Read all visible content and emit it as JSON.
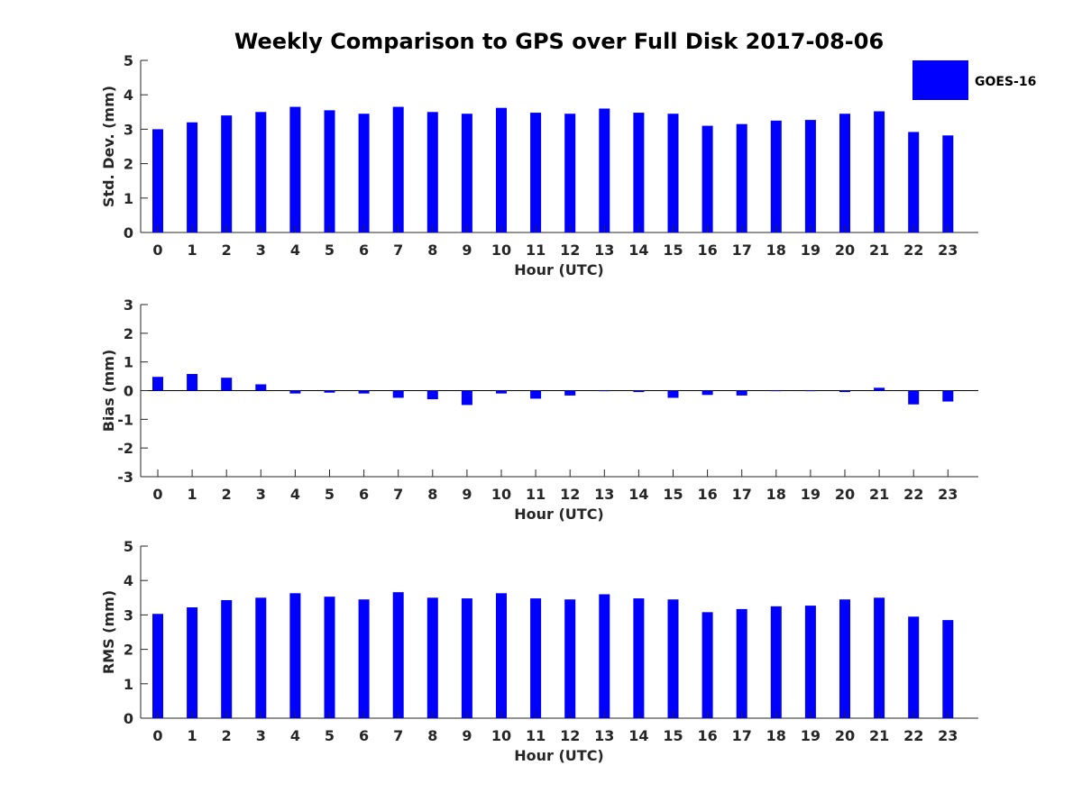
{
  "title": "Weekly Comparison to GPS over Full Disk 2017-08-06",
  "legend": {
    "label": "GOES-16",
    "color": "#0000ff"
  },
  "chart_data": [
    {
      "type": "bar",
      "title": "Weekly Comparison to GPS over Full Disk 2017-08-06",
      "xlabel": "Hour (UTC)",
      "ylabel": "Std. Dev. (mm)",
      "ylim": [
        0,
        5
      ],
      "yticks": [
        0,
        1,
        2,
        3,
        4,
        5
      ],
      "categories": [
        "0",
        "1",
        "2",
        "3",
        "4",
        "5",
        "6",
        "7",
        "8",
        "9",
        "10",
        "11",
        "12",
        "13",
        "14",
        "15",
        "16",
        "17",
        "18",
        "19",
        "20",
        "21",
        "22",
        "23"
      ],
      "series": [
        {
          "name": "GOES-16",
          "color": "#0000ff",
          "values": [
            3.0,
            3.2,
            3.4,
            3.5,
            3.65,
            3.55,
            3.45,
            3.65,
            3.5,
            3.45,
            3.62,
            3.48,
            3.45,
            3.6,
            3.48,
            3.45,
            3.1,
            3.15,
            3.25,
            3.27,
            3.45,
            3.52,
            2.92,
            2.82
          ]
        }
      ]
    },
    {
      "type": "bar",
      "xlabel": "Hour (UTC)",
      "ylabel": "Bias (mm)",
      "ylim": [
        -3,
        3
      ],
      "yticks": [
        -3,
        -2,
        -1,
        0,
        1,
        2,
        3
      ],
      "categories": [
        "0",
        "1",
        "2",
        "3",
        "4",
        "5",
        "6",
        "7",
        "8",
        "9",
        "10",
        "11",
        "12",
        "13",
        "14",
        "15",
        "16",
        "17",
        "18",
        "19",
        "20",
        "21",
        "22",
        "23"
      ],
      "series": [
        {
          "name": "GOES-16",
          "color": "#0000ff",
          "values": [
            0.48,
            0.58,
            0.45,
            0.22,
            -0.1,
            -0.07,
            -0.1,
            -0.25,
            -0.3,
            -0.5,
            -0.1,
            -0.28,
            -0.17,
            -0.02,
            -0.05,
            -0.25,
            -0.15,
            -0.17,
            -0.02,
            -0.02,
            -0.05,
            0.1,
            -0.48,
            -0.38
          ]
        }
      ]
    },
    {
      "type": "bar",
      "xlabel": "Hour (UTC)",
      "ylabel": "RMS (mm)",
      "ylim": [
        0,
        5
      ],
      "yticks": [
        0,
        1,
        2,
        3,
        4,
        5
      ],
      "categories": [
        "0",
        "1",
        "2",
        "3",
        "4",
        "5",
        "6",
        "7",
        "8",
        "9",
        "10",
        "11",
        "12",
        "13",
        "14",
        "15",
        "16",
        "17",
        "18",
        "19",
        "20",
        "21",
        "22",
        "23"
      ],
      "series": [
        {
          "name": "GOES-16",
          "color": "#0000ff",
          "values": [
            3.03,
            3.22,
            3.43,
            3.5,
            3.63,
            3.53,
            3.45,
            3.66,
            3.5,
            3.48,
            3.63,
            3.48,
            3.45,
            3.6,
            3.48,
            3.45,
            3.08,
            3.17,
            3.25,
            3.27,
            3.45,
            3.5,
            2.95,
            2.85
          ]
        }
      ]
    }
  ]
}
